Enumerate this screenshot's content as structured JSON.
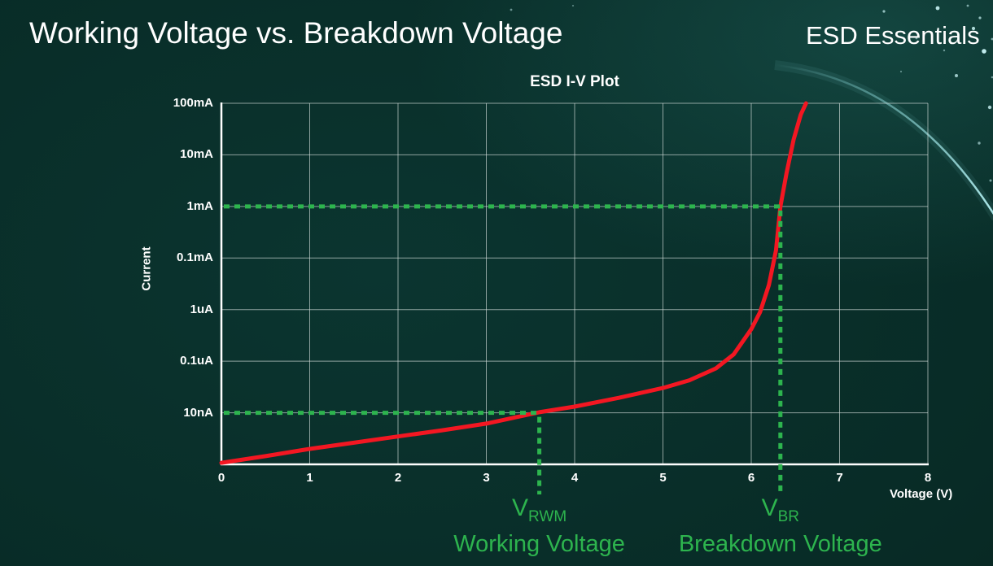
{
  "page": {
    "title": "Working Voltage vs. Breakdown Voltage",
    "brand": "ESD Essentials"
  },
  "chart_data": {
    "type": "line",
    "title": "ESD I-V Plot",
    "xlabel": "Voltage (V)",
    "ylabel": "Current",
    "x_tick_labels": [
      "0",
      "1",
      "2",
      "3",
      "4",
      "5",
      "6",
      "7",
      "8"
    ],
    "xlim": [
      0,
      8
    ],
    "y_scale": "log",
    "y_tick_labels": [
      "100mA",
      "10mA",
      "1mA",
      "0.1mA",
      "1uA",
      "0.1uA",
      "10nA"
    ],
    "y_decade_rows": 7,
    "grid": true,
    "legend": "none",
    "grid_color": "rgba(214,222,219,0.65)",
    "axis_color": "#ffffff",
    "series": [
      {
        "name": "ESD I-V curve",
        "color": "#f31722",
        "points_format": "[voltage_V, decades_below_100mA_gridline]",
        "points_v_row": [
          [
            0,
            6.97
          ],
          [
            0.5,
            6.84
          ],
          [
            1,
            6.7
          ],
          [
            1.5,
            6.58
          ],
          [
            2,
            6.46
          ],
          [
            2.5,
            6.34
          ],
          [
            3,
            6.21
          ],
          [
            3.3,
            6.1
          ],
          [
            3.6,
            5.99
          ],
          [
            4,
            5.88
          ],
          [
            4.5,
            5.71
          ],
          [
            5,
            5.52
          ],
          [
            5.3,
            5.37
          ],
          [
            5.6,
            5.14
          ],
          [
            5.8,
            4.87
          ],
          [
            6,
            4.38
          ],
          [
            6.1,
            4.05
          ],
          [
            6.2,
            3.52
          ],
          [
            6.28,
            2.85
          ],
          [
            6.33,
            2.0
          ],
          [
            6.4,
            1.35
          ],
          [
            6.48,
            0.7
          ],
          [
            6.56,
            0.22
          ],
          [
            6.62,
            0
          ]
        ]
      }
    ],
    "annotations": {
      "color": "#2db44e",
      "working": {
        "symbol": "V",
        "subscript": "RWM",
        "caption": "Working Voltage",
        "voltage": 3.6,
        "current_row": 6,
        "current_label": "10nA"
      },
      "breakdown": {
        "symbol": "V",
        "subscript": "BR",
        "caption": "Breakdown Voltage",
        "voltage": 6.33,
        "current_row": 2,
        "current_label": "1mA"
      }
    }
  }
}
